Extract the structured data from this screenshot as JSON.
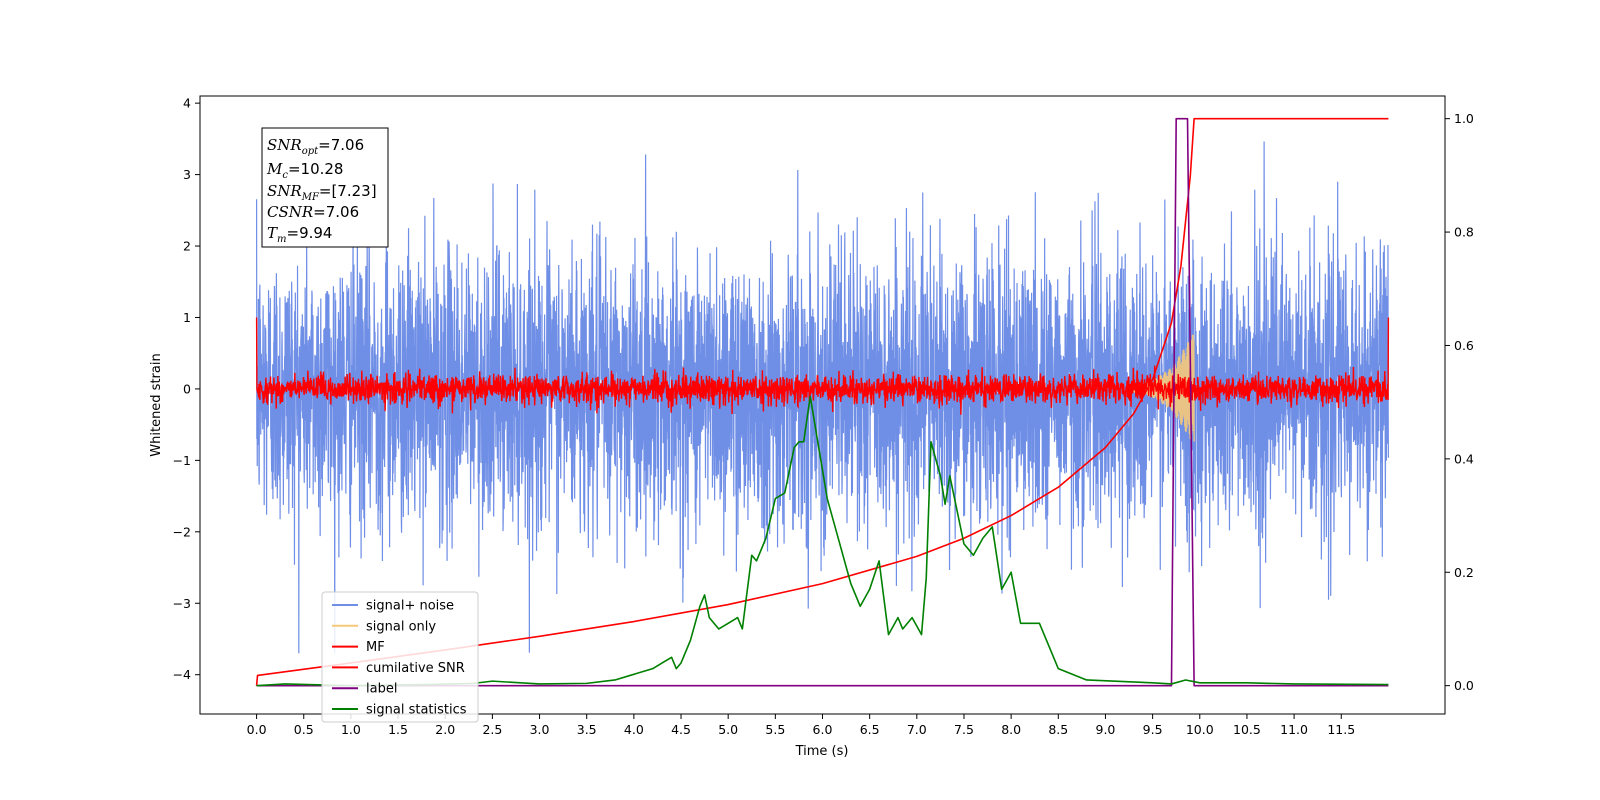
{
  "chart_data": {
    "type": "line",
    "xlabel": "Time (s)",
    "ylabel": "Whitened strain",
    "xlim": [
      -0.6,
      12.6
    ],
    "ylim": [
      -4.55,
      4.1
    ],
    "y2lim": [
      -0.05,
      1.04
    ],
    "x_ticks": [
      "0.0",
      "0.5",
      "1.0",
      "1.5",
      "2.0",
      "2.5",
      "3.0",
      "3.5",
      "4.0",
      "4.5",
      "5.0",
      "5.5",
      "6.0",
      "6.5",
      "7.0",
      "7.5",
      "8.0",
      "8.5",
      "9.0",
      "9.5",
      "10.0",
      "10.5",
      "11.0",
      "11.5"
    ],
    "y_ticks": [
      "4",
      "3",
      "2",
      "1",
      "0",
      "−1",
      "−2",
      "−3",
      "−4"
    ],
    "y2_ticks": [
      "1.0",
      "0.8",
      "0.6",
      "0.4",
      "0.2",
      "0.0"
    ],
    "annotation": {
      "snr_opt": {
        "sym": "SNR",
        "sub": "opt",
        "value": "=7.06"
      },
      "mc": {
        "sym": "M",
        "sub": "c",
        "value": "=10.28"
      },
      "snr_mf": {
        "sym": "SNR",
        "sub": "MF",
        "value": "=[7.23]"
      },
      "csnr": {
        "sym": "CSNR",
        "value": "=7.06"
      },
      "tm": {
        "sym": "T",
        "sub": "m",
        "value": "=9.94"
      }
    },
    "legend": {
      "placement": "lower-left",
      "entries": [
        {
          "label": "signal+ noise",
          "color": "#6f8ee6"
        },
        {
          "label": "signal only",
          "color": "#f5c97a"
        },
        {
          "label": "MF",
          "color": "#ff0000"
        },
        {
          "label": "cumilative SNR",
          "color": "#ff0000"
        },
        {
          "label": "label",
          "color": "#800080"
        },
        {
          "label": "signal statistics",
          "color": "#008000"
        }
      ]
    },
    "series": [
      {
        "name": "signal+ noise",
        "axis": "left",
        "color": "#6f8ee6",
        "x_range": [
          0.0,
          12.0
        ],
        "amplitude_envelope": {
          "typical_max": 2.2,
          "peak_max": 3.7,
          "typical_min": -2.2,
          "peak_min": -3.7
        }
      },
      {
        "name": "signal only",
        "axis": "left",
        "color": "#f5c97a",
        "x": [
          9.3,
          9.5,
          9.7,
          9.85,
          9.94
        ],
        "amplitude": [
          0.05,
          0.12,
          0.3,
          0.6,
          0.8
        ]
      },
      {
        "name": "MF",
        "axis": "left",
        "color": "#ff0000",
        "x_range": [
          0.0,
          12.0
        ],
        "amplitude_envelope": {
          "typical_max": 0.3,
          "peak_max": 0.55,
          "edge_values": [
            1.0,
            1.0
          ]
        }
      },
      {
        "name": "cumilative SNR",
        "axis": "right",
        "color": "#ff0000",
        "x": [
          0.0,
          0.01,
          1.0,
          2.0,
          3.0,
          4.0,
          5.0,
          6.0,
          7.0,
          7.5,
          8.0,
          8.5,
          9.0,
          9.3,
          9.5,
          9.7,
          9.8,
          9.9,
          9.94,
          12.0
        ],
        "y": [
          0.0,
          0.018,
          0.04,
          0.063,
          0.087,
          0.113,
          0.143,
          0.18,
          0.228,
          0.26,
          0.3,
          0.35,
          0.42,
          0.48,
          0.54,
          0.64,
          0.74,
          0.9,
          1.0,
          1.0
        ]
      },
      {
        "name": "label",
        "axis": "right",
        "color": "#800080",
        "x": [
          0.0,
          9.7,
          9.75,
          9.87,
          9.94,
          12.0
        ],
        "y": [
          0.0,
          0.0,
          1.0,
          1.0,
          0.0,
          0.0
        ]
      },
      {
        "name": "signal statistics",
        "axis": "right",
        "color": "#008000",
        "x": [
          0.0,
          0.3,
          1.0,
          1.8,
          2.3,
          2.5,
          3.0,
          3.5,
          3.8,
          4.0,
          4.2,
          4.3,
          4.4,
          4.45,
          4.5,
          4.6,
          4.7,
          4.75,
          4.8,
          4.9,
          5.0,
          5.1,
          5.15,
          5.25,
          5.3,
          5.4,
          5.5,
          5.6,
          5.7,
          5.75,
          5.8,
          5.87,
          5.95,
          6.05,
          6.15,
          6.3,
          6.4,
          6.5,
          6.6,
          6.7,
          6.8,
          6.85,
          6.95,
          7.05,
          7.1,
          7.15,
          7.25,
          7.3,
          7.35,
          7.5,
          7.6,
          7.7,
          7.8,
          7.9,
          8.0,
          8.1,
          8.2,
          8.3,
          8.4,
          8.5,
          8.8,
          9.5,
          9.7,
          9.85,
          10.0,
          10.5,
          11.0,
          12.0
        ],
        "y": [
          0.0,
          0.003,
          0.0,
          0.002,
          0.004,
          0.008,
          0.003,
          0.004,
          0.01,
          0.02,
          0.03,
          0.04,
          0.05,
          0.03,
          0.04,
          0.08,
          0.14,
          0.16,
          0.12,
          0.1,
          0.11,
          0.12,
          0.1,
          0.23,
          0.22,
          0.26,
          0.33,
          0.34,
          0.42,
          0.43,
          0.43,
          0.51,
          0.43,
          0.33,
          0.27,
          0.18,
          0.14,
          0.17,
          0.22,
          0.09,
          0.12,
          0.1,
          0.12,
          0.09,
          0.19,
          0.43,
          0.37,
          0.32,
          0.37,
          0.25,
          0.23,
          0.26,
          0.28,
          0.17,
          0.2,
          0.11,
          0.11,
          0.11,
          0.07,
          0.03,
          0.01,
          0.005,
          0.003,
          0.01,
          0.005,
          0.005,
          0.003,
          0.002
        ]
      }
    ]
  }
}
